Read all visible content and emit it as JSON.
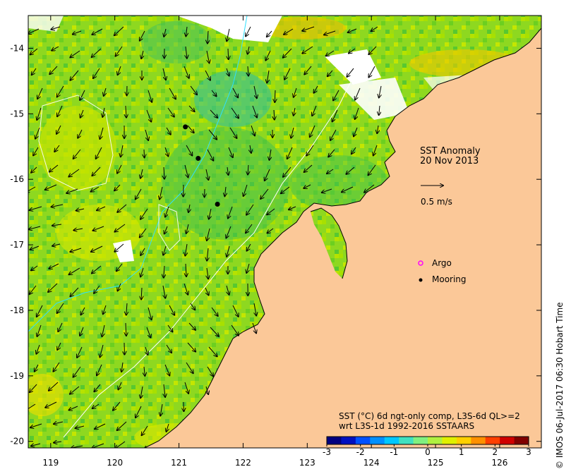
{
  "map": {
    "title_line1": "SST Anomaly",
    "title_line2": "20 Nov 2013",
    "vector_scale_label": "0.5 m/s",
    "legend": {
      "argo_label": "Argo",
      "mooring_label": "Mooring",
      "argo_color": "#ff00ff",
      "mooring_color": "#000000"
    },
    "colorbar": {
      "caption_line1": "SST (°C) 6d ngt-only comp, L3S-6d QL>=2",
      "caption_line2": "wrt L3S-1d 1992-2016 SSTAARS",
      "ticks": [
        "-3",
        "-2",
        "-1",
        "0",
        "1",
        "2",
        "3"
      ],
      "colors": [
        "#000080",
        "#0010c0",
        "#0050ff",
        "#0090ff",
        "#00c8ff",
        "#40e0c0",
        "#80f080",
        "#b0f040",
        "#e0f000",
        "#ffd000",
        "#ff9000",
        "#ff4000",
        "#d00000",
        "#800000"
      ]
    },
    "credit": "© IMOS 06-Jul-2017 06:30 Hobart Time",
    "land_color": "#fbc898",
    "lon_ticks": [
      "119",
      "120",
      "121",
      "122",
      "123",
      "124",
      "125",
      "126"
    ],
    "lat_ticks": [
      "-14",
      "-15",
      "-16",
      "-17",
      "-18",
      "-19",
      "-20"
    ],
    "moorings": [
      {
        "lon": 121.1,
        "lat": -15.2
      },
      {
        "lon": 121.3,
        "lat": -15.68
      },
      {
        "lon": 121.6,
        "lat": -16.38
      }
    ]
  }
}
